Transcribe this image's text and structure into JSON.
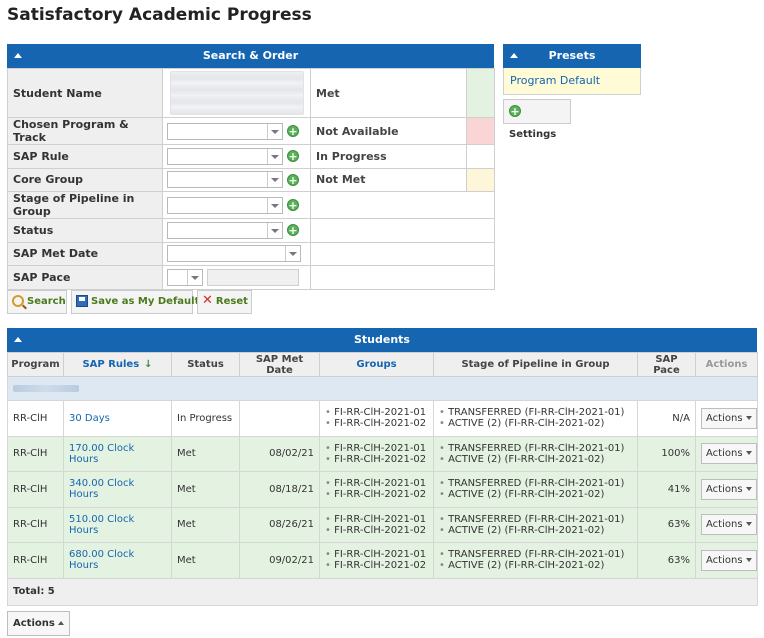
{
  "page": {
    "title": "Satisfactory Academic Progress"
  },
  "search_panel": {
    "title": "Search & Order",
    "fields": {
      "student_name": "Student Name",
      "chosen_program": "Chosen Program & Track",
      "sap_rule": "SAP Rule",
      "core_group": "Core Group",
      "stage": "Stage of Pipeline in Group",
      "status": "Status",
      "sap_met_date": "SAP Met Date",
      "sap_pace": "SAP Pace"
    },
    "legend": {
      "met": "Met",
      "not_available": "Not Available",
      "in_progress": "In Progress",
      "not_met": "Not Met"
    },
    "colors": {
      "met": "#e4f3e1",
      "not_available": "#f9d5d5",
      "in_progress": "#ffffff",
      "not_met": "#fdf6d8"
    }
  },
  "buttons": {
    "search": "Search",
    "save_default": "Save as My Default",
    "reset": "Reset"
  },
  "presets_panel": {
    "title": "Presets",
    "items": [
      "Program Default"
    ],
    "settings": "Settings"
  },
  "students_panel": {
    "title": "Students",
    "headers": {
      "program": "Program",
      "sap_rules": "SAP Rules",
      "status": "Status",
      "sap_met_date": "SAP Met Date",
      "groups": "Groups",
      "stage": "Stage of Pipeline in Group",
      "sap_pace": "SAP Pace",
      "actions": "Actions"
    },
    "rows": [
      {
        "program": "RR-ClH",
        "sap_rule": "30 Days",
        "status": "In Progress",
        "met_date": "",
        "group1": "FI-RR-ClH-2021-01",
        "group2": "FI-RR-ClH-2021-02",
        "stage1": "TRANSFERRED (FI-RR-ClH-2021-01)",
        "stage2": "ACTIVE (2) (FI-RR-ClH-2021-02)",
        "pace": "N/A",
        "actions": "Actions",
        "state": "in-progress"
      },
      {
        "program": "RR-ClH",
        "sap_rule": "170.00 Clock Hours",
        "status": "Met",
        "met_date": "08/02/21",
        "group1": "FI-RR-ClH-2021-01",
        "group2": "FI-RR-ClH-2021-02",
        "stage1": "TRANSFERRED (FI-RR-ClH-2021-01)",
        "stage2": "ACTIVE (2) (FI-RR-ClH-2021-02)",
        "pace": "100%",
        "actions": "Actions",
        "state": "met"
      },
      {
        "program": "RR-ClH",
        "sap_rule": "340.00 Clock Hours",
        "status": "Met",
        "met_date": "08/18/21",
        "group1": "FI-RR-ClH-2021-01",
        "group2": "FI-RR-ClH-2021-02",
        "stage1": "TRANSFERRED (FI-RR-ClH-2021-01)",
        "stage2": "ACTIVE (2) (FI-RR-ClH-2021-02)",
        "pace": "41%",
        "actions": "Actions",
        "state": "met"
      },
      {
        "program": "RR-ClH",
        "sap_rule": "510.00 Clock Hours",
        "status": "Met",
        "met_date": "08/26/21",
        "group1": "FI-RR-ClH-2021-01",
        "group2": "FI-RR-ClH-2021-02",
        "stage1": "TRANSFERRED (FI-RR-ClH-2021-01)",
        "stage2": "ACTIVE (2) (FI-RR-ClH-2021-02)",
        "pace": "63%",
        "actions": "Actions",
        "state": "met"
      },
      {
        "program": "RR-ClH",
        "sap_rule": "680.00 Clock Hours",
        "status": "Met",
        "met_date": "09/02/21",
        "group1": "FI-RR-ClH-2021-01",
        "group2": "FI-RR-ClH-2021-02",
        "stage1": "TRANSFERRED (FI-RR-ClH-2021-01)",
        "stage2": "ACTIVE (2) (FI-RR-ClH-2021-02)",
        "pace": "63%",
        "actions": "Actions",
        "state": "met"
      }
    ],
    "total": "Total: 5"
  },
  "bottom": {
    "actions": "Actions"
  }
}
